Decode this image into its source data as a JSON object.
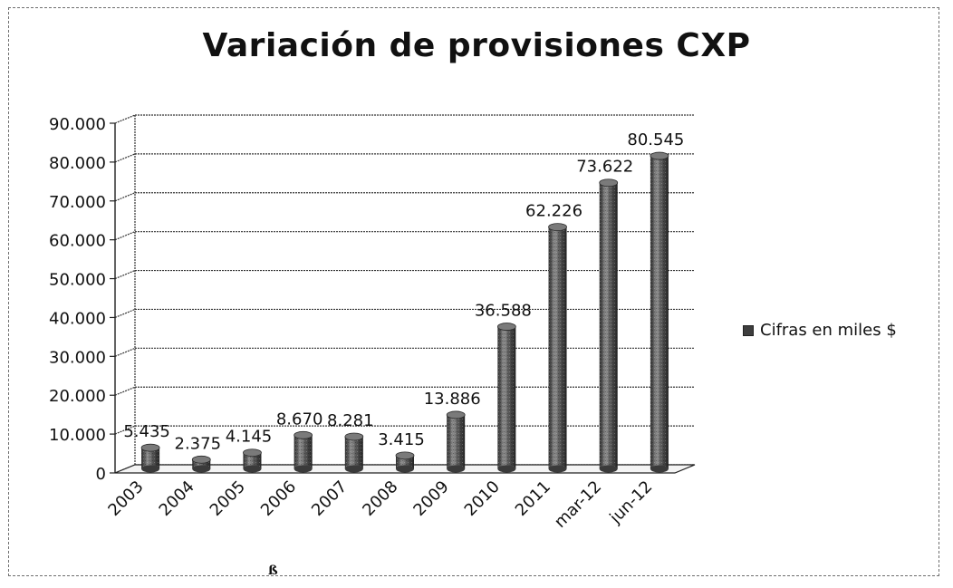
{
  "chart_data": {
    "type": "bar",
    "title": "Variación de provisiones CXP",
    "categories": [
      "2003",
      "2004",
      "2005",
      "2006",
      "2007",
      "2008",
      "2009",
      "2010",
      "2011",
      "mar-12",
      "jun-12"
    ],
    "series": [
      {
        "name": "Cifras en miles $",
        "values": [
          5435,
          2375,
          4145,
          8670,
          8281,
          3415,
          13886,
          36588,
          62226,
          73622,
          80545
        ],
        "labels": [
          "5.435",
          "2.375",
          "4.145",
          "8.670",
          "8.281",
          "3.415",
          "13.886",
          "36.588",
          "62.226",
          "73.622",
          "80.545"
        ]
      }
    ],
    "ylim": [
      0,
      90000
    ],
    "yticks": [
      0,
      10000,
      20000,
      30000,
      40000,
      50000,
      60000,
      70000,
      80000,
      90000
    ],
    "ytick_labels": [
      "0",
      "10.000",
      "20.000",
      "30.000",
      "40.000",
      "50.000",
      "60.000",
      "70.000",
      "80.000",
      "90.000"
    ],
    "grid": true,
    "legend_position": "right",
    "style": "3d-cylinder",
    "colors": {
      "bar": "#4a4a4a",
      "bar_highlight": "#9a9a9a",
      "grid": "#333333"
    }
  },
  "annotation": "ß"
}
